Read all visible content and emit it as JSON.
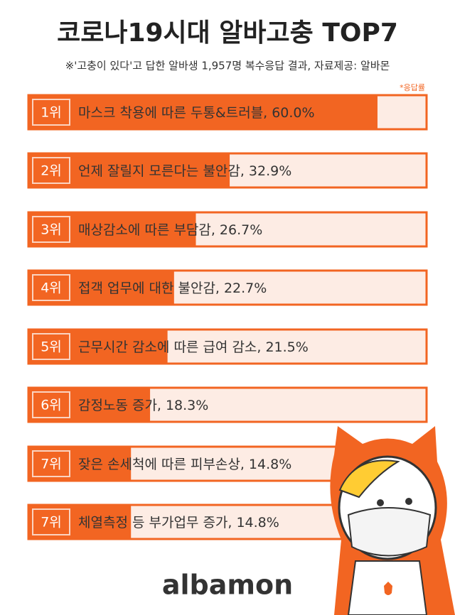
{
  "chart_data": {
    "type": "bar",
    "title": "코로나19시대 알바고충 TOP7",
    "subtitle": "※'고충이 있다'고 답한 알바생 1,957명 복수응답 결과, 자료제공: 알바몬",
    "note": "*응답률",
    "ranks": [
      "1위",
      "2위",
      "3위",
      "4위",
      "5위",
      "6위",
      "7위",
      "7위"
    ],
    "categories": [
      "마스크 착용에 따른 두통&트러블,",
      "언제 잘릴지 모른다는 불안감,",
      "매상감소에 따른 부담감,",
      "접객 업무에 대한 불안감,",
      "근무시간 감소에 따른 급여 감소,",
      "감정노동 증가,",
      "잦은 손세척에 따른 피부손상,",
      "체열측정 등 부가업무 증가,"
    ],
    "values": [
      60.0,
      32.9,
      26.7,
      22.7,
      21.5,
      18.3,
      14.8,
      14.8
    ],
    "value_labels": [
      "60.0%",
      "32.9%",
      "26.7%",
      "22.7%",
      "21.5%",
      "18.3%",
      "14.8%",
      "14.8%"
    ],
    "xlim": [
      -4,
      69
    ],
    "color": "#f26522",
    "logo": "albamon"
  }
}
